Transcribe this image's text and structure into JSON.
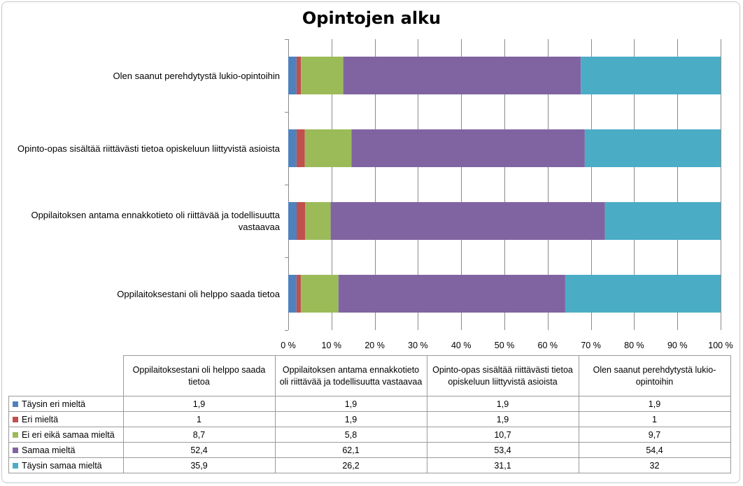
{
  "chart_data": {
    "type": "bar",
    "orientation": "horizontal",
    "stacked": "percent",
    "title": "Opintojen alku",
    "categories": [
      "Oppilaitoksestani oli helppo saada tietoa",
      "Oppilaitoksen antama ennakkotieto oli riittävää ja todellisuutta vastaavaa",
      "Opinto-opas sisältää riittävästi tietoa opiskeluun liittyvistä asioista",
      "Olen saanut perehdytystä lukio-opintoihin"
    ],
    "series": [
      {
        "name": "Täysin eri mieltä",
        "color": "#4f81bd",
        "values": [
          1.9,
          1.9,
          1.9,
          1.9
        ],
        "labels": [
          "1,9",
          "1,9",
          "1,9",
          "1,9"
        ]
      },
      {
        "name": "Eri mieltä",
        "color": "#c0504d",
        "values": [
          1,
          1.9,
          1.9,
          1
        ],
        "labels": [
          "1",
          "1,9",
          "1,9",
          "1"
        ]
      },
      {
        "name": "Ei eri eikä samaa mieltä",
        "color": "#9bbb59",
        "values": [
          8.7,
          5.8,
          10.7,
          9.7
        ],
        "labels": [
          "8,7",
          "5,8",
          "10,7",
          "9,7"
        ]
      },
      {
        "name": "Samaa mieltä",
        "color": "#8064a2",
        "values": [
          52.4,
          62.1,
          53.4,
          54.4
        ],
        "labels": [
          "52,4",
          "62,1",
          "53,4",
          "54,4"
        ]
      },
      {
        "name": "Täysin samaa mieltä",
        "color": "#4bacc6",
        "values": [
          35.9,
          26.2,
          31.1,
          32
        ],
        "labels": [
          "35,9",
          "26,2",
          "31,1",
          "32"
        ]
      }
    ],
    "xlim": [
      0,
      100
    ],
    "x_ticks": [
      "0 %",
      "10 %",
      "20 %",
      "30 %",
      "40 %",
      "50 %",
      "60 %",
      "70 %",
      "80 %",
      "90 %",
      "100 %"
    ],
    "grid": true,
    "legend": "data-table"
  }
}
